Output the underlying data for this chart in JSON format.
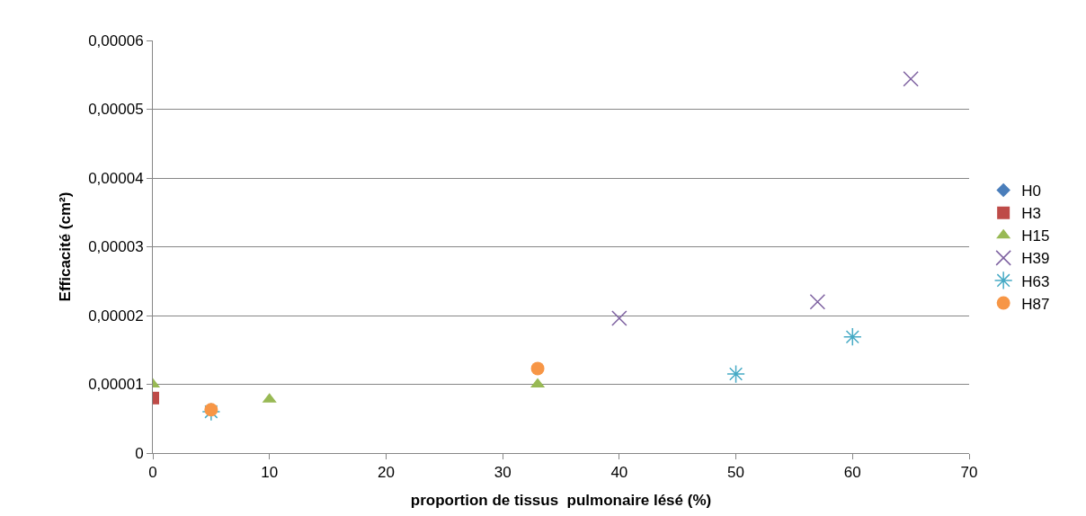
{
  "chart_data": {
    "type": "scatter",
    "xlabel": "proportion de tissus  pulmonaire lésé (%)",
    "ylabel": "Efficacité (cm²)",
    "xlim": [
      0,
      70
    ],
    "xticks": [
      0,
      10,
      20,
      30,
      40,
      50,
      60,
      70
    ],
    "ylim": [
      0,
      6e-05
    ],
    "yticks": [
      0,
      {
        "value": 1e-05,
        "label": "0,00001"
      },
      {
        "value": 2e-05,
        "label": "0,00002"
      },
      {
        "value": 3e-05,
        "label": "0,00003"
      },
      {
        "value": 4e-05,
        "label": "0,00004"
      },
      {
        "value": 5e-05,
        "label": "0,00005"
      },
      {
        "value": 6e-05,
        "label": "0,00006"
      }
    ],
    "grid": "y",
    "legend": "right",
    "series": [
      {
        "name": "H0",
        "color": "#4a7ebb",
        "marker": "diamond",
        "values": [
          null
        ]
      },
      {
        "name": "H3",
        "color": "#be4b48",
        "marker": "square",
        "x": [
          0
        ],
        "values": [
          8e-06
        ]
      },
      {
        "name": "H15",
        "color": "#98b954",
        "marker": "triangle",
        "x": [
          0,
          10,
          33
        ],
        "values": [
          1e-05,
          7.8e-06,
          1e-05
        ]
      },
      {
        "name": "H39",
        "color": "#7d60a0",
        "marker": "cross",
        "x": [
          40,
          57,
          65
        ],
        "values": [
          1.96e-05,
          2.2e-05,
          5.44e-05
        ]
      },
      {
        "name": "H63",
        "color": "#46aac5",
        "x": [
          5,
          50,
          60
        ],
        "values": [
          6e-06,
          1.15e-05,
          1.69e-05
        ]
      },
      {
        "name": "H87",
        "color": "#f79646",
        "marker": "circle",
        "x": [
          5,
          33
        ],
        "values": [
          6.3e-06,
          1.23e-05
        ]
      }
    ]
  }
}
